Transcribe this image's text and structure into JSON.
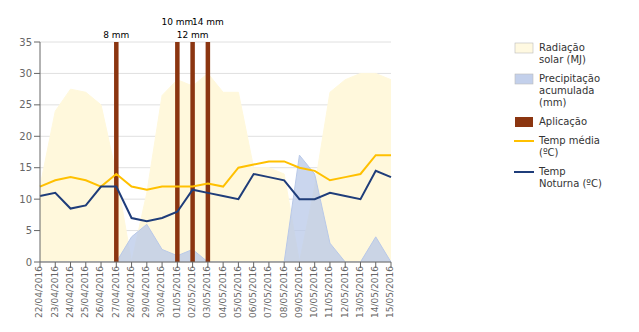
{
  "chart_data": {
    "type": "line",
    "categories": [
      "22/04/2016",
      "23/04/2016",
      "24/04/2016",
      "25/04/2016",
      "26/04/2016",
      "27/04/2016",
      "28/04/2016",
      "29/04/2016",
      "30/04/2016",
      "01/05/2016",
      "02/05/2016",
      "03/05/2016",
      "04/05/2016",
      "05/05/2016",
      "06/05/2016",
      "07/05/2016",
      "08/05/2016",
      "09/05/2016",
      "10/05/2016",
      "11/05/2016",
      "12/05/2016",
      "13/05/2016",
      "14/05/2016",
      "15/05/2016"
    ],
    "series": [
      {
        "name": "Radiação\nsolar (MJ)",
        "type": "area",
        "color": "#FFF8DC",
        "values": [
          12,
          24,
          27.5,
          27,
          25,
          14,
          0,
          11,
          26.5,
          29,
          28,
          30,
          27,
          27,
          15,
          15,
          14,
          0,
          12,
          27,
          29,
          30,
          30,
          29
        ]
      },
      {
        "name": "Precipitação\nacumulada\n(mm)",
        "type": "area",
        "color": "#B8C8E8",
        "values": [
          0,
          0,
          0,
          0,
          0,
          0,
          4,
          6,
          2,
          1,
          2,
          0,
          0,
          0,
          0,
          0,
          0,
          17,
          14,
          3,
          0,
          0,
          4,
          0
        ]
      },
      {
        "name": "Temp média\n(ºC)",
        "type": "line",
        "color": "#FFC000",
        "values": [
          12,
          13,
          13.5,
          13,
          12,
          14,
          12,
          11.5,
          12,
          12,
          12,
          12.5,
          12,
          15,
          15.5,
          16,
          16,
          15,
          14.5,
          13,
          13.5,
          14,
          17,
          17
        ]
      },
      {
        "name": "Temp\nNoturna (ºC)",
        "type": "line",
        "color": "#1F3D7A",
        "values": [
          10.5,
          11,
          8.5,
          9,
          12,
          12,
          7,
          6.5,
          7,
          8,
          11.5,
          11,
          10.5,
          10,
          14,
          13.5,
          13,
          10,
          10,
          11,
          10.5,
          10,
          14.5,
          13.5
        ]
      }
    ],
    "aplicacoes": {
      "name": "Aplicação",
      "color": "#8B3510",
      "x": [
        "27/04/2016",
        "01/05/2016",
        "02/05/2016",
        "03/05/2016"
      ]
    },
    "annotations": [
      {
        "x": "27/04/2016",
        "text": "8 mm"
      },
      {
        "x": "01/05/2016",
        "text": "10 mm"
      },
      {
        "x": "02/05/2016",
        "text": "12 mm"
      },
      {
        "x": "03/05/2016",
        "text": "14 mm"
      }
    ],
    "ylim": [
      0,
      35
    ],
    "yticks": [
      0,
      5,
      10,
      15,
      20,
      25,
      30,
      35
    ],
    "grid": true
  }
}
